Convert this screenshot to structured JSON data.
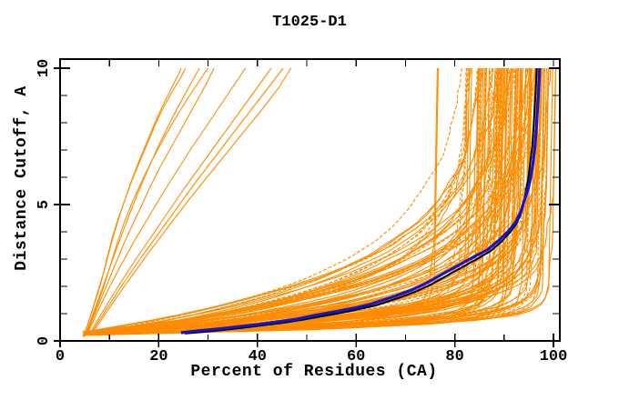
{
  "window": {
    "background": "#ffffff"
  },
  "chart_data": {
    "type": "line",
    "title": "T1025-D1",
    "xlabel": "Percent of Residues (CA)",
    "ylabel": "Distance Cutoff, A",
    "xlim": [
      0,
      101.3
    ],
    "ylim": [
      0,
      10.33
    ],
    "grid": false,
    "legend": "none",
    "axes": {
      "x_major_ticks": [
        0,
        20,
        40,
        60,
        80,
        100
      ],
      "x_tick_labels": [
        "0",
        "20",
        "40",
        "60",
        "80",
        "100"
      ],
      "x_minor_ticks": [
        10,
        30,
        50,
        70,
        90
      ],
      "x_top_ticks": [
        10,
        20,
        30,
        40,
        50,
        60,
        70,
        80,
        90,
        100
      ],
      "y_major_ticks": [
        0,
        5,
        10
      ],
      "y_tick_labels": [
        "0",
        "5",
        "10"
      ],
      "y_minor_ticks": [
        1,
        2,
        3,
        4,
        6,
        7,
        8,
        9
      ],
      "y_right_major_ticks": [
        5,
        10
      ],
      "y_right_minor_ticks": [
        1,
        2,
        3,
        4,
        6,
        7,
        8,
        9
      ],
      "frame_color": "#000000"
    },
    "colors": {
      "model_ensemble": "#FF8C00",
      "highlight_model": "#1515CE",
      "reference_model": "#000000"
    },
    "highlight_curve": {
      "name": "highlight-model",
      "color": "#1515CE",
      "points": [
        [
          24.5,
          0.3
        ],
        [
          28,
          0.37
        ],
        [
          32,
          0.44
        ],
        [
          36,
          0.52
        ],
        [
          40,
          0.6
        ],
        [
          44,
          0.7
        ],
        [
          48,
          0.8
        ],
        [
          52,
          0.95
        ],
        [
          56,
          1.08
        ],
        [
          60,
          1.22
        ],
        [
          63,
          1.35
        ],
        [
          65.5,
          1.5
        ],
        [
          68,
          1.65
        ],
        [
          71,
          1.85
        ],
        [
          74,
          2.1
        ],
        [
          77,
          2.4
        ],
        [
          80,
          2.7
        ],
        [
          83,
          3.0
        ],
        [
          86.7,
          3.35
        ],
        [
          89,
          3.7
        ],
        [
          91,
          4.05
        ],
        [
          92.3,
          4.35
        ],
        [
          93.3,
          4.7
        ],
        [
          94.1,
          5.15
        ],
        [
          94.9,
          5.6
        ],
        [
          95.4,
          6.0
        ],
        [
          95.9,
          6.6
        ],
        [
          96.3,
          7.2
        ],
        [
          96.6,
          8.0
        ],
        [
          96.9,
          8.9
        ],
        [
          97.1,
          9.6
        ],
        [
          97.2,
          10
        ]
      ]
    },
    "reference_curve": {
      "name": "reference-model",
      "color": "#000000",
      "points": [
        [
          25.3,
          0.27
        ],
        [
          29,
          0.33
        ],
        [
          33,
          0.4
        ],
        [
          37,
          0.48
        ],
        [
          41,
          0.57
        ],
        [
          45,
          0.66
        ],
        [
          49,
          0.77
        ],
        [
          53,
          0.9
        ],
        [
          57,
          1.03
        ],
        [
          61,
          1.18
        ],
        [
          64,
          1.3
        ],
        [
          66.5,
          1.45
        ],
        [
          69,
          1.6
        ],
        [
          72,
          1.8
        ],
        [
          75,
          2.05
        ],
        [
          78,
          2.35
        ],
        [
          81,
          2.65
        ],
        [
          84,
          2.95
        ],
        [
          87.3,
          3.3
        ],
        [
          89.5,
          3.65
        ],
        [
          91.3,
          4.0
        ],
        [
          92.5,
          4.3
        ],
        [
          93.4,
          4.65
        ],
        [
          94.0,
          5.05
        ],
        [
          94.4,
          5.5
        ],
        [
          94.9,
          5.95
        ],
        [
          95.3,
          6.55
        ],
        [
          95.7,
          7.15
        ],
        [
          96.0,
          7.95
        ],
        [
          96.3,
          8.85
        ],
        [
          96.5,
          9.55
        ],
        [
          96.6,
          10
        ]
      ]
    },
    "outlier_curves": {
      "color": "#FF8C00",
      "curves": [
        [
          [
            4.8,
            0.18
          ],
          [
            5.8,
            0.7
          ],
          [
            6.8,
            1.3
          ],
          [
            7.8,
            1.9
          ],
          [
            8.8,
            2.5
          ],
          [
            9.6,
            3.1
          ],
          [
            10.6,
            3.8
          ],
          [
            11.8,
            4.5
          ],
          [
            13.2,
            5.2
          ],
          [
            14.6,
            5.9
          ],
          [
            16.2,
            6.6
          ],
          [
            17.6,
            7.2
          ],
          [
            19.2,
            7.9
          ],
          [
            20.8,
            8.5
          ],
          [
            22.6,
            9.1
          ],
          [
            24.6,
            9.7
          ],
          [
            25.4,
            10
          ]
        ],
        [
          [
            5.0,
            0.18
          ],
          [
            6.2,
            0.75
          ],
          [
            7.5,
            1.4
          ],
          [
            8.8,
            2.05
          ],
          [
            10.0,
            2.65
          ],
          [
            11.2,
            3.25
          ],
          [
            12.6,
            3.95
          ],
          [
            14.0,
            4.6
          ],
          [
            15.5,
            5.3
          ],
          [
            17.0,
            5.95
          ],
          [
            18.6,
            6.6
          ],
          [
            20.2,
            7.25
          ],
          [
            22.0,
            7.9
          ],
          [
            23.8,
            8.55
          ],
          [
            25.8,
            9.2
          ],
          [
            27.6,
            9.8
          ],
          [
            28.3,
            10
          ]
        ],
        [
          [
            5.2,
            0.18
          ],
          [
            6.6,
            0.8
          ],
          [
            8.2,
            1.5
          ],
          [
            9.8,
            2.2
          ],
          [
            11.4,
            2.9
          ],
          [
            13.0,
            3.6
          ],
          [
            14.8,
            4.3
          ],
          [
            16.6,
            5.0
          ],
          [
            18.4,
            5.7
          ],
          [
            20.2,
            6.35
          ],
          [
            22.2,
            7.0
          ],
          [
            24.2,
            7.65
          ],
          [
            26.2,
            8.3
          ],
          [
            28.2,
            8.95
          ],
          [
            30.0,
            9.55
          ],
          [
            31.2,
            10
          ]
        ],
        [
          [
            4.9,
            0.15
          ],
          [
            6.0,
            0.6
          ],
          [
            7.2,
            1.15
          ],
          [
            8.4,
            1.75
          ],
          [
            9.4,
            2.3
          ],
          [
            10.4,
            2.9
          ],
          [
            11.6,
            3.6
          ],
          [
            13.0,
            4.35
          ],
          [
            14.8,
            5.15
          ],
          [
            16.8,
            5.95
          ],
          [
            19.0,
            6.75
          ],
          [
            21.4,
            7.55
          ],
          [
            24.0,
            8.35
          ],
          [
            26.6,
            9.1
          ],
          [
            29.2,
            9.8
          ],
          [
            30.0,
            10
          ]
        ],
        [
          [
            4.7,
            0.15
          ],
          [
            5.5,
            0.55
          ],
          [
            6.4,
            1.05
          ],
          [
            7.4,
            1.6
          ],
          [
            8.4,
            2.2
          ],
          [
            9.2,
            2.75
          ],
          [
            10.2,
            3.45
          ],
          [
            11.4,
            4.2
          ],
          [
            12.8,
            5.0
          ],
          [
            14.2,
            5.75
          ],
          [
            15.8,
            6.5
          ],
          [
            17.4,
            7.2
          ],
          [
            19.0,
            7.9
          ],
          [
            20.6,
            8.55
          ],
          [
            22.4,
            9.2
          ],
          [
            24.2,
            9.85
          ],
          [
            24.5,
            10
          ]
        ],
        [
          [
            5.4,
            0.2
          ],
          [
            7.4,
            1.0
          ],
          [
            9.8,
            1.9
          ],
          [
            12.4,
            2.8
          ],
          [
            15.0,
            3.65
          ],
          [
            17.8,
            4.5
          ],
          [
            20.6,
            5.35
          ],
          [
            23.4,
            6.15
          ],
          [
            26.2,
            6.95
          ],
          [
            29.0,
            7.7
          ],
          [
            31.8,
            8.45
          ],
          [
            34.6,
            9.2
          ],
          [
            37.0,
            9.85
          ],
          [
            37.6,
            10
          ]
        ],
        [
          [
            5.8,
            0.2
          ],
          [
            8.4,
            1.0
          ],
          [
            11.6,
            1.95
          ],
          [
            15.0,
            2.9
          ],
          [
            18.4,
            3.8
          ],
          [
            21.8,
            4.7
          ],
          [
            25.2,
            5.6
          ],
          [
            28.6,
            6.45
          ],
          [
            32.0,
            7.3
          ],
          [
            35.2,
            8.1
          ],
          [
            38.4,
            8.9
          ],
          [
            41.6,
            9.7
          ],
          [
            42.8,
            10
          ]
        ],
        [
          [
            6.0,
            0.2
          ],
          [
            9.0,
            1.05
          ],
          [
            12.6,
            2.05
          ],
          [
            16.4,
            3.05
          ],
          [
            20.2,
            4.0
          ],
          [
            24.0,
            4.95
          ],
          [
            27.6,
            5.85
          ],
          [
            31.2,
            6.7
          ],
          [
            34.8,
            7.55
          ],
          [
            38.2,
            8.35
          ],
          [
            41.6,
            9.15
          ],
          [
            44.6,
            9.85
          ],
          [
            45.2,
            10
          ]
        ],
        [
          [
            6.2,
            0.2
          ],
          [
            9.6,
            1.1
          ],
          [
            13.6,
            2.15
          ],
          [
            17.8,
            3.2
          ],
          [
            22.0,
            4.2
          ],
          [
            26.0,
            5.15
          ],
          [
            30.0,
            6.05
          ],
          [
            33.8,
            6.9
          ],
          [
            37.6,
            7.75
          ],
          [
            41.0,
            8.5
          ],
          [
            44.4,
            9.3
          ],
          [
            46.6,
            9.95
          ],
          [
            46.8,
            10
          ]
        ]
      ]
    },
    "bundle": {
      "description": "dense ensemble of model curves rising steeply between 80-100 percent",
      "color": "#FF8C00",
      "count": 115,
      "seed": 7,
      "x_start_range": [
        4.5,
        9.5
      ],
      "y_start_range": [
        0.2,
        0.35
      ],
      "x_top_main_range": [
        89,
        100
      ],
      "x_top_mid_range": [
        82,
        90
      ],
      "x_top_low_range": [
        75,
        84
      ],
      "k_range": [
        0.38,
        4.6
      ]
    }
  }
}
